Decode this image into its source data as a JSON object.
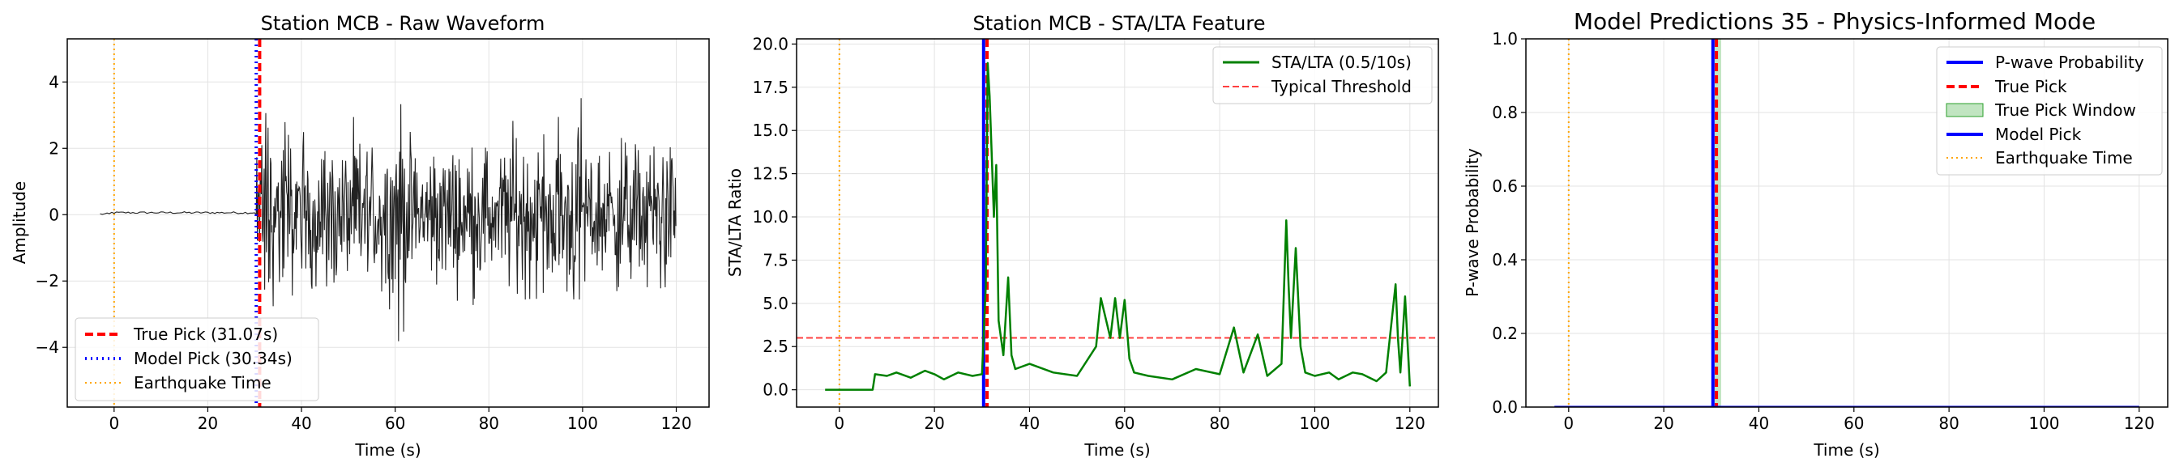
{
  "chart_data": [
    {
      "type": "line",
      "title": "Station MCB - Raw Waveform",
      "xlabel": "Time (s)",
      "ylabel": "Amplitude",
      "xlim": [
        -10,
        127
      ],
      "ylim": [
        -5.8,
        5.3
      ],
      "xticks": [
        0,
        20,
        40,
        60,
        80,
        100,
        120
      ],
      "yticks": [
        -4,
        -2,
        0,
        2,
        4
      ],
      "ytick_labels": [
        "−4",
        "−2",
        "0",
        "2",
        "4"
      ],
      "grid": true,
      "legend_position": "lower-left",
      "series": [
        {
          "name": "True Pick (31.07s)",
          "kind": "vline",
          "x": 31.07,
          "color": "#ff0000",
          "style": "dashed"
        },
        {
          "name": "Model Pick (30.34s)",
          "kind": "vline",
          "x": 30.34,
          "color": "#0000ff",
          "style": "dotted"
        },
        {
          "name": "Earthquake Time",
          "kind": "vline",
          "x": 0,
          "color": "#ffa500",
          "style": "dotted"
        }
      ],
      "waveform": {
        "color": "#222222",
        "x_range": [
          -3,
          120
        ],
        "pre_event_amplitude": 0.05,
        "segments": [
          {
            "x": [
              -3,
              30.34
            ],
            "amplitude": 0.06
          },
          {
            "x": [
              30.34,
              33
            ],
            "amplitude": 5.2
          },
          {
            "x": [
              33,
              45
            ],
            "amplitude": 3.6
          },
          {
            "x": [
              45,
              60
            ],
            "amplitude": 3.2
          },
          {
            "x": [
              60,
              62
            ],
            "amplitude": 5.3
          },
          {
            "x": [
              62,
              85
            ],
            "amplitude": 3.0
          },
          {
            "x": [
              85,
              95
            ],
            "amplitude": 3.5
          },
          {
            "x": [
              95,
              100
            ],
            "amplitude": 4.5
          },
          {
            "x": [
              100,
              120
            ],
            "amplitude": 3.2
          }
        ]
      }
    },
    {
      "type": "line",
      "title": "Station MCB - STA/LTA Feature",
      "xlabel": "Time (s)",
      "ylabel": "STA/LTA Ratio",
      "xlim": [
        -9,
        126
      ],
      "ylim": [
        -1.0,
        20.3
      ],
      "xticks": [
        0,
        20,
        40,
        60,
        80,
        100,
        120
      ],
      "yticks": [
        0.0,
        2.5,
        5.0,
        7.5,
        10.0,
        12.5,
        15.0,
        17.5,
        20.0
      ],
      "ytick_labels": [
        "0.0",
        "2.5",
        "5.0",
        "7.5",
        "10.0",
        "12.5",
        "15.0",
        "17.5",
        "20.0"
      ],
      "grid": true,
      "legend_position": "top-right",
      "series": [
        {
          "name": "STA/LTA (0.5/10s)",
          "kind": "line",
          "color": "#008000",
          "x": [
            -3,
            7,
            7.5,
            10,
            12,
            15,
            18,
            20,
            22,
            25,
            28,
            30,
            30.8,
            31.2,
            31.6,
            32.0,
            32.5,
            33.0,
            33.5,
            34.5,
            35.5,
            36.2,
            37,
            40,
            45,
            50,
            54,
            55,
            57,
            58,
            59,
            60,
            61,
            62,
            65,
            70,
            75,
            80,
            83,
            85,
            88,
            90,
            93,
            94,
            94.5,
            95,
            96,
            97,
            98,
            100,
            103,
            105,
            108,
            110,
            113,
            115,
            117,
            117.5,
            118,
            119,
            120
          ],
          "y": [
            0.0,
            0.0,
            0.9,
            0.8,
            1.0,
            0.7,
            1.1,
            0.9,
            0.6,
            1.0,
            0.8,
            0.9,
            6.0,
            18.9,
            17.0,
            14.0,
            10.0,
            13.0,
            4.0,
            2.0,
            6.5,
            2.0,
            1.2,
            1.5,
            1.0,
            0.8,
            2.5,
            5.3,
            3.0,
            5.3,
            3.0,
            5.2,
            1.8,
            1.0,
            0.8,
            0.6,
            1.2,
            0.9,
            3.6,
            1.0,
            3.2,
            0.8,
            1.5,
            9.8,
            6.0,
            3.0,
            8.2,
            2.5,
            1.0,
            0.8,
            1.0,
            0.6,
            1.0,
            0.9,
            0.5,
            1.0,
            6.1,
            3.0,
            1.0,
            5.4,
            0.2
          ]
        },
        {
          "name": "Typical Threshold",
          "kind": "hline",
          "y": 3.0,
          "color": "#ff0000",
          "style": "dashed"
        }
      ],
      "extra_marks": [
        {
          "kind": "vline",
          "x": 31.07,
          "color": "#ff0000",
          "style": "dashed"
        },
        {
          "kind": "vline",
          "x": 30.34,
          "color": "#0000ff",
          "style": "solid"
        },
        {
          "kind": "vline",
          "x": 0,
          "color": "#ffa500",
          "style": "dotted"
        }
      ]
    },
    {
      "type": "line",
      "title": "Model Predictions 35 - Physics-Informed Mode",
      "xlabel": "Time (s)",
      "ylabel": "P-wave Probability",
      "xlim": [
        -9,
        126
      ],
      "ylim": [
        0.0,
        1.0
      ],
      "xticks": [
        0,
        20,
        40,
        60,
        80,
        100,
        120
      ],
      "yticks": [
        0.0,
        0.2,
        0.4,
        0.6,
        0.8,
        1.0
      ],
      "ytick_labels": [
        "0.0",
        "0.2",
        "0.4",
        "0.6",
        "0.8",
        "1.0"
      ],
      "grid": true,
      "legend_position": "top-right",
      "series": [
        {
          "name": "P-wave Probability",
          "kind": "line",
          "color": "#0000ff",
          "x": [
            -3,
            120
          ],
          "y": [
            0.0,
            0.0
          ]
        },
        {
          "name": "True Pick",
          "kind": "vline",
          "x": 31.07,
          "color": "#ff0000",
          "style": "dashed"
        },
        {
          "name": "True Pick Window",
          "kind": "span",
          "x": [
            30.07,
            32.07
          ],
          "color": "#98d498"
        },
        {
          "name": "Model Pick",
          "kind": "vline",
          "x": 30.34,
          "color": "#0000ff",
          "style": "solid"
        },
        {
          "name": "Earthquake Time",
          "kind": "vline",
          "x": 0,
          "color": "#ffa500",
          "style": "dotted"
        }
      ]
    }
  ]
}
